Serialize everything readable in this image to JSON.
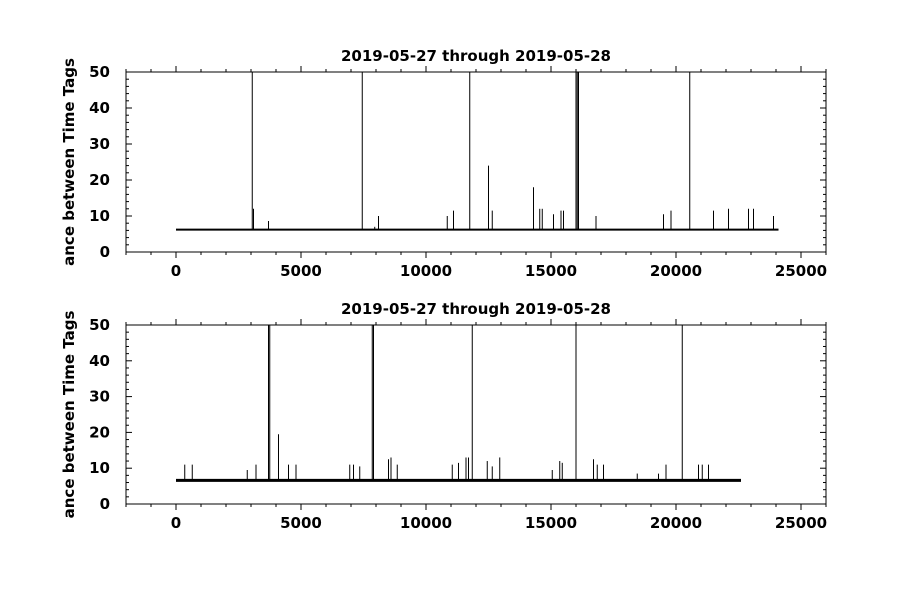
{
  "chart_data": [
    {
      "type": "line",
      "title": "2019-05-27 through 2019-05-28",
      "ylabel": "ance between Time Tags",
      "xlabel": "",
      "xlim": [
        -2000,
        26000
      ],
      "ylim": [
        0,
        50
      ],
      "x_ticks": [
        0,
        5000,
        10000,
        15000,
        20000,
        25000
      ],
      "x_tick_labels": [
        "0",
        "5000",
        "10000",
        "15000",
        "20000",
        "25000"
      ],
      "y_ticks": [
        0,
        10,
        20,
        30,
        40,
        50
      ],
      "y_tick_labels": [
        "0",
        "10",
        "20",
        "30",
        "40",
        "50"
      ],
      "grid": false,
      "series": [
        {
          "baseline": {
            "x": [
              0,
              24100
            ],
            "y": 6.2
          },
          "spikes": [
            {
              "x": 3050,
              "y": 50
            },
            {
              "x": 3100,
              "y": 12
            },
            {
              "x": 3700,
              "y": 8.6
            },
            {
              "x": 7450,
              "y": 50
            },
            {
              "x": 7950,
              "y": 7
            },
            {
              "x": 8100,
              "y": 10
            },
            {
              "x": 10850,
              "y": 10
            },
            {
              "x": 11100,
              "y": 11.5
            },
            {
              "x": 11750,
              "y": 50
            },
            {
              "x": 12500,
              "y": 24
            },
            {
              "x": 12650,
              "y": 11.5
            },
            {
              "x": 14300,
              "y": 18
            },
            {
              "x": 14550,
              "y": 12
            },
            {
              "x": 14650,
              "y": 12
            },
            {
              "x": 15100,
              "y": 10.5
            },
            {
              "x": 15400,
              "y": 11.5
            },
            {
              "x": 15500,
              "y": 11.5
            },
            {
              "x": 16000,
              "y": 50
            },
            {
              "x": 16050,
              "y": 50
            },
            {
              "x": 16100,
              "y": 50
            },
            {
              "x": 16800,
              "y": 10
            },
            {
              "x": 19500,
              "y": 10.5
            },
            {
              "x": 19800,
              "y": 11.5
            },
            {
              "x": 20550,
              "y": 50
            },
            {
              "x": 21500,
              "y": 11.5
            },
            {
              "x": 22100,
              "y": 12
            },
            {
              "x": 22900,
              "y": 12
            },
            {
              "x": 23100,
              "y": 12
            },
            {
              "x": 23900,
              "y": 10
            }
          ]
        }
      ]
    },
    {
      "type": "line",
      "title": "2019-05-27 through 2019-05-28",
      "ylabel": "ance between Time Tags",
      "xlabel": "",
      "xlim": [
        -2000,
        26000
      ],
      "ylim": [
        0,
        50
      ],
      "x_ticks": [
        0,
        5000,
        10000,
        15000,
        20000,
        25000
      ],
      "x_tick_labels": [
        "0",
        "5000",
        "10000",
        "15000",
        "20000",
        "25000"
      ],
      "y_ticks": [
        0,
        10,
        20,
        30,
        40,
        50
      ],
      "y_tick_labels": [
        "0",
        "10",
        "20",
        "30",
        "40",
        "50"
      ],
      "grid": false,
      "series": [
        {
          "baseline": {
            "x": [
              0,
              22600
            ],
            "y": 6.6
          },
          "spikes": [
            {
              "x": 350,
              "y": 11
            },
            {
              "x": 650,
              "y": 11
            },
            {
              "x": 2850,
              "y": 9.5
            },
            {
              "x": 3200,
              "y": 11
            },
            {
              "x": 3700,
              "y": 50
            },
            {
              "x": 3750,
              "y": 50
            },
            {
              "x": 4100,
              "y": 19.5
            },
            {
              "x": 4500,
              "y": 11
            },
            {
              "x": 4800,
              "y": 11
            },
            {
              "x": 6950,
              "y": 11
            },
            {
              "x": 7100,
              "y": 11
            },
            {
              "x": 7350,
              "y": 10.5
            },
            {
              "x": 7850,
              "y": 50
            },
            {
              "x": 7900,
              "y": 50
            },
            {
              "x": 8500,
              "y": 12.5
            },
            {
              "x": 8600,
              "y": 13
            },
            {
              "x": 8850,
              "y": 11
            },
            {
              "x": 11050,
              "y": 11
            },
            {
              "x": 11300,
              "y": 11.5
            },
            {
              "x": 11600,
              "y": 13
            },
            {
              "x": 11700,
              "y": 13
            },
            {
              "x": 11850,
              "y": 50
            },
            {
              "x": 12450,
              "y": 12
            },
            {
              "x": 12650,
              "y": 10.5
            },
            {
              "x": 12950,
              "y": 13
            },
            {
              "x": 15050,
              "y": 9.5
            },
            {
              "x": 15350,
              "y": 12
            },
            {
              "x": 15450,
              "y": 11.5
            },
            {
              "x": 16000,
              "y": 50
            },
            {
              "x": 16700,
              "y": 12.5
            },
            {
              "x": 16850,
              "y": 11
            },
            {
              "x": 17100,
              "y": 11
            },
            {
              "x": 18450,
              "y": 8.5
            },
            {
              "x": 19300,
              "y": 8.5
            },
            {
              "x": 19600,
              "y": 11
            },
            {
              "x": 20250,
              "y": 50
            },
            {
              "x": 20900,
              "y": 11
            },
            {
              "x": 21050,
              "y": 11
            },
            {
              "x": 21300,
              "y": 11
            }
          ]
        }
      ]
    }
  ]
}
